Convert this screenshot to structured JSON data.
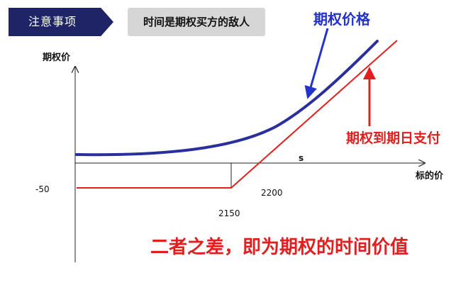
{
  "header": {
    "tag_label": "注意事项",
    "tip_text": "时间是期权买方的敌人"
  },
  "diagram": {
    "y_axis_label": "期权价",
    "x_axis_label": "标的价",
    "s_label": "s",
    "minus50_label": "-50",
    "strike_2150_label": "2150",
    "breakeven_2200_label": "2200",
    "option_price_label": "期权价格",
    "payoff_label": "期权到期日支付",
    "conclusion": "二者之差，即为期权的时间价值"
  },
  "colors": {
    "tag_bg": "#1f2466",
    "tip_bg": "#d6d6d6",
    "option_price_curve": "#2a2f9e",
    "payoff_line": "#e02020",
    "option_label": "#2233cc",
    "conclusion_text": "#e02020"
  }
}
